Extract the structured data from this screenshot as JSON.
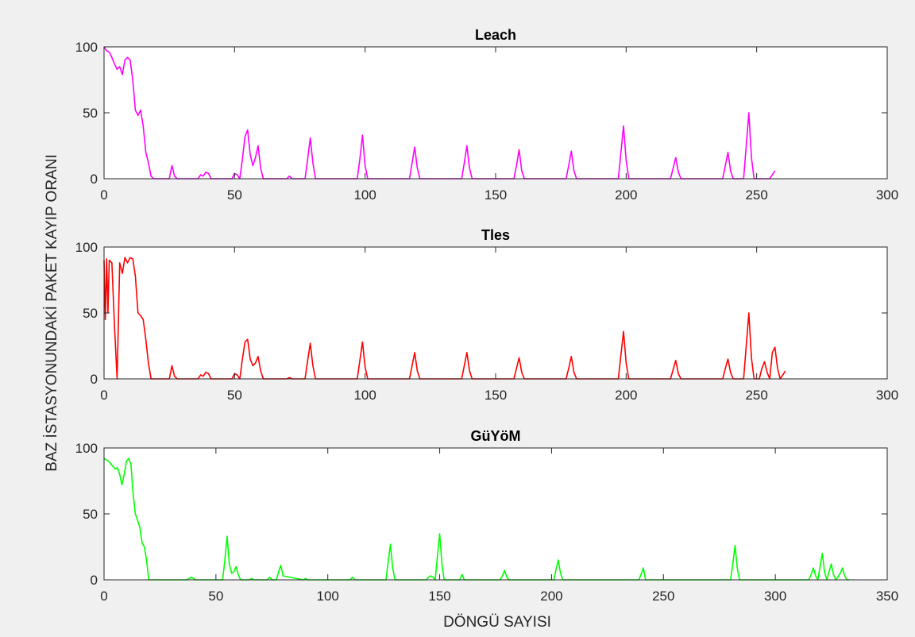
{
  "figure": {
    "ylabel": "BAZ İSTASYONUNDAKİ PAKET KAYIP ORANI",
    "xlabel": "DÖNGÜ SAYISI"
  },
  "chart_data": [
    {
      "type": "line",
      "title": "Leach",
      "color": "#ff00ff",
      "xlim": [
        0,
        300
      ],
      "ylim": [
        0,
        100
      ],
      "xticks": [
        0,
        50,
        100,
        150,
        200,
        250,
        300
      ],
      "yticks": [
        0,
        50,
        100
      ],
      "series": [
        {
          "x": [
            0,
            1,
            2,
            3,
            4,
            5,
            6,
            7,
            8,
            9,
            10,
            11,
            12,
            13,
            14,
            15,
            16,
            17,
            18,
            19,
            25,
            26,
            27,
            28,
            36,
            37,
            38,
            39,
            40,
            41,
            49,
            50,
            51,
            52,
            53,
            54,
            55,
            56,
            57,
            58,
            59,
            60,
            61,
            70,
            71,
            72,
            77,
            78,
            79,
            80,
            81,
            97,
            98,
            99,
            100,
            101,
            117,
            118,
            119,
            120,
            121,
            137,
            138,
            139,
            140,
            141,
            157,
            158,
            159,
            160,
            161,
            177,
            178,
            179,
            180,
            181,
            197,
            198,
            199,
            200,
            201,
            217,
            218,
            219,
            220,
            221,
            237,
            238,
            239,
            240,
            241,
            245,
            246,
            247,
            248,
            249,
            255,
            256,
            257
          ],
          "y": [
            100,
            97,
            96,
            92,
            87,
            83,
            85,
            79,
            90,
            92,
            90,
            75,
            52,
            48,
            52,
            40,
            20,
            12,
            2,
            0,
            0,
            10,
            2,
            0,
            0,
            3,
            2,
            5,
            4,
            0,
            0,
            4,
            3,
            0,
            15,
            32,
            37,
            18,
            10,
            16,
            25,
            8,
            0,
            0,
            2,
            0,
            0,
            15,
            31,
            12,
            0,
            0,
            15,
            33,
            10,
            0,
            0,
            12,
            24,
            8,
            0,
            0,
            12,
            25,
            8,
            0,
            0,
            10,
            22,
            6,
            0,
            0,
            10,
            21,
            6,
            0,
            0,
            20,
            40,
            14,
            0,
            0,
            8,
            16,
            5,
            0,
            0,
            10,
            20,
            6,
            0,
            0,
            25,
            50,
            16,
            0,
            0,
            3,
            6
          ]
        }
      ]
    },
    {
      "type": "line",
      "title": "Tles",
      "color": "#ff0000",
      "xlim": [
        0,
        300
      ],
      "ylim": [
        0,
        100
      ],
      "xticks": [
        0,
        50,
        100,
        150,
        200,
        250,
        300
      ],
      "yticks": [
        0,
        50,
        100
      ],
      "series": [
        {
          "x": [
            0,
            0.5,
            1,
            1.5,
            2,
            3,
            4,
            5,
            6,
            7,
            8,
            9,
            10,
            11,
            12,
            13,
            14,
            15,
            16,
            17,
            18,
            25,
            26,
            27,
            28,
            36,
            37,
            38,
            39,
            40,
            41,
            49,
            50,
            51,
            52,
            53,
            54,
            55,
            56,
            57,
            58,
            59,
            60,
            61,
            70,
            71,
            72,
            77,
            78,
            79,
            80,
            81,
            97,
            98,
            99,
            100,
            101,
            117,
            118,
            119,
            120,
            121,
            137,
            138,
            139,
            140,
            141,
            157,
            158,
            159,
            160,
            161,
            177,
            178,
            179,
            180,
            181,
            197,
            198,
            199,
            200,
            201,
            217,
            218,
            219,
            220,
            221,
            237,
            238,
            239,
            240,
            241,
            245,
            246,
            247,
            248,
            249,
            251,
            252,
            253,
            254,
            255,
            256,
            257,
            258,
            259,
            260,
            261
          ],
          "y": [
            90,
            45,
            91,
            50,
            90,
            88,
            40,
            0,
            88,
            80,
            92,
            88,
            92,
            91,
            78,
            50,
            48,
            45,
            30,
            12,
            0,
            0,
            10,
            2,
            0,
            0,
            3,
            2,
            5,
            4,
            0,
            0,
            4,
            3,
            0,
            15,
            28,
            30,
            15,
            10,
            12,
            17,
            6,
            0,
            0,
            1,
            0,
            0,
            14,
            27,
            10,
            0,
            0,
            14,
            28,
            9,
            0,
            0,
            10,
            20,
            6,
            0,
            0,
            10,
            20,
            6,
            0,
            0,
            8,
            16,
            5,
            0,
            0,
            8,
            17,
            5,
            0,
            0,
            18,
            36,
            12,
            0,
            0,
            7,
            14,
            4,
            0,
            0,
            8,
            15,
            5,
            0,
            0,
            25,
            50,
            16,
            0,
            0,
            8,
            13,
            5,
            0,
            20,
            24,
            8,
            0,
            3,
            6
          ]
        }
      ]
    },
    {
      "type": "line",
      "title": "GüYöM",
      "color": "#00ff00",
      "xlim": [
        0,
        350
      ],
      "ylim": [
        0,
        100
      ],
      "xticks": [
        0,
        50,
        100,
        150,
        200,
        250,
        300,
        350
      ],
      "yticks": [
        0,
        50,
        100
      ],
      "series": [
        {
          "x": [
            0,
            1,
            2,
            3,
            4,
            5,
            6,
            7,
            8,
            9,
            10,
            11,
            12,
            13,
            14,
            15,
            16,
            17,
            18,
            19,
            20,
            37,
            39,
            41,
            53,
            54,
            55,
            56,
            57,
            58,
            59,
            60,
            61,
            65,
            66,
            67,
            73,
            74,
            75,
            77,
            78,
            79,
            80,
            89,
            90,
            91,
            110,
            111,
            112,
            126,
            127,
            128,
            129,
            130,
            144,
            145,
            146,
            147,
            148,
            149,
            150,
            151,
            152,
            159,
            160,
            161,
            177,
            178,
            179,
            180,
            181,
            201,
            202,
            203,
            204,
            205,
            239,
            240,
            241,
            242,
            280,
            281,
            282,
            283,
            284,
            315,
            316,
            317,
            318,
            319,
            320,
            321,
            322,
            323,
            324,
            325,
            326,
            327,
            328,
            329,
            330,
            331,
            332,
            333
          ],
          "y": [
            92,
            91,
            90,
            88,
            86,
            84,
            85,
            80,
            72,
            80,
            90,
            92,
            88,
            65,
            50,
            45,
            40,
            28,
            25,
            15,
            0,
            0,
            2,
            0,
            0,
            15,
            33,
            12,
            5,
            6,
            10,
            4,
            0,
            0,
            1,
            0,
            0,
            2,
            0,
            0,
            6,
            11,
            3,
            0,
            1,
            0,
            0,
            2,
            0,
            0,
            14,
            27,
            9,
            0,
            0,
            2,
            3,
            2,
            0,
            18,
            35,
            12,
            0,
            0,
            4,
            0,
            0,
            3,
            7,
            2,
            0,
            0,
            8,
            15,
            5,
            0,
            0,
            4,
            9,
            0,
            0,
            12,
            26,
            9,
            0,
            0,
            4,
            9,
            3,
            0,
            10,
            20,
            6,
            0,
            6,
            12,
            4,
            0,
            2,
            5,
            9,
            3,
            0,
            0
          ]
        }
      ]
    }
  ]
}
